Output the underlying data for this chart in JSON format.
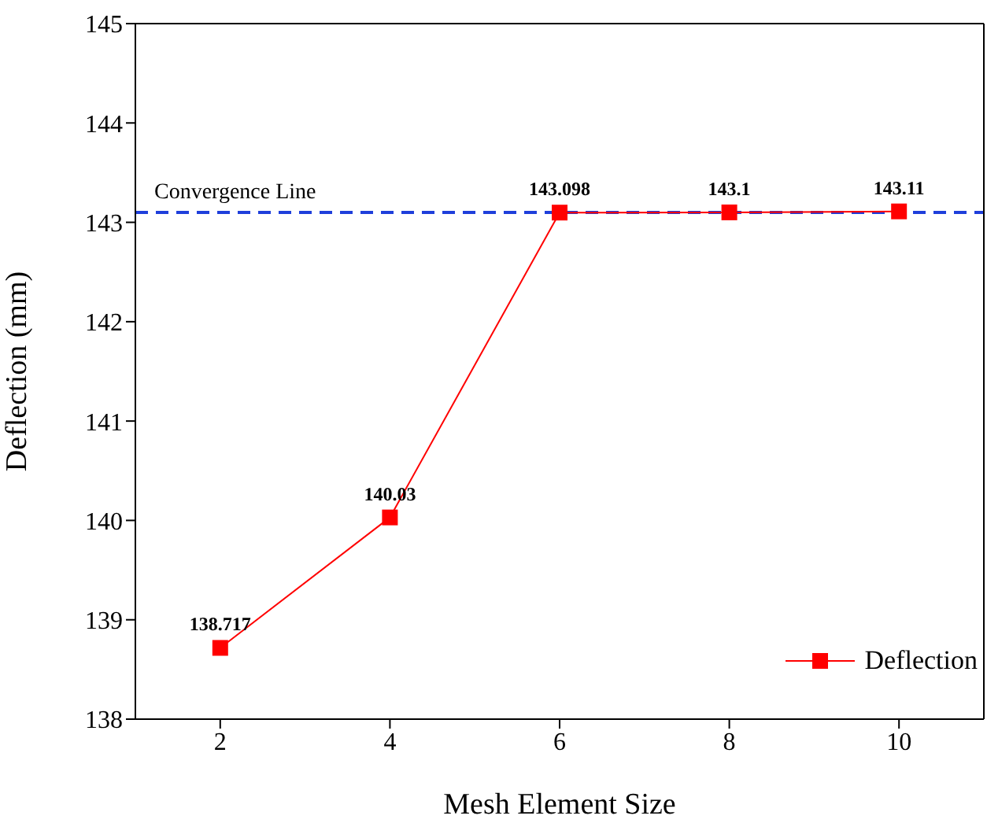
{
  "chart_data": {
    "type": "line",
    "xlabel": "Mesh Element Size",
    "ylabel": "Deflection (mm)",
    "x": [
      2,
      4,
      6,
      8,
      10
    ],
    "series": [
      {
        "name": "Deflection",
        "color": "#ff0000",
        "values": [
          138.717,
          140.03,
          143.098,
          143.1,
          143.11
        ]
      }
    ],
    "xlim": [
      1,
      11
    ],
    "xticks": [
      2,
      4,
      6,
      8,
      10
    ],
    "ylim": [
      138,
      145
    ],
    "yticks": [
      138,
      139,
      140,
      141,
      142,
      143,
      144,
      145
    ],
    "ref_lines": [
      {
        "axis": "y",
        "value": 143.1,
        "label": "Convergence Line",
        "color": "#1f3fdb",
        "line_style": "dashed"
      }
    ],
    "data_labels": true,
    "legend": "bottom right",
    "marker": "square",
    "line_style": "solid",
    "grid": false
  }
}
